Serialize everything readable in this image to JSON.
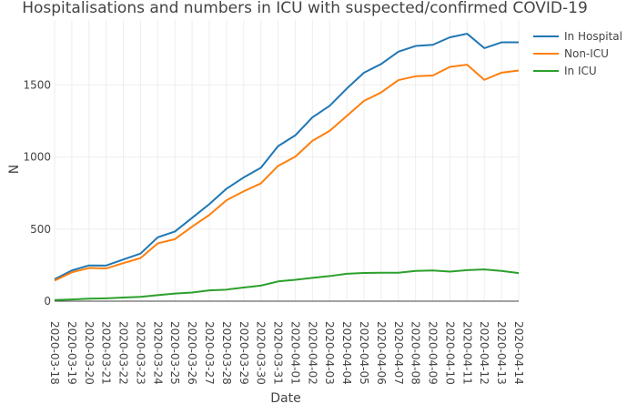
{
  "chart_data": {
    "type": "line",
    "title": "Hospitalisations and numbers in ICU with suspected/confirmed COVID-19",
    "xlabel": "Date",
    "ylabel": "N",
    "ylim": [
      0,
      1950
    ],
    "yticks": [
      0,
      500,
      1000,
      1500
    ],
    "yticks_labels": [
      "0",
      "500",
      "1000",
      "1500"
    ],
    "grid": true,
    "legend_position": "top-right",
    "x": [
      "2020-03-18",
      "2020-03-19",
      "2020-03-20",
      "2020-03-21",
      "2020-03-22",
      "2020-03-23",
      "2020-03-24",
      "2020-03-25",
      "2020-03-26",
      "2020-03-27",
      "2020-03-28",
      "2020-03-29",
      "2020-03-30",
      "2020-03-31",
      "2020-04-01",
      "2020-04-02",
      "2020-04-03",
      "2020-04-04",
      "2020-04-05",
      "2020-04-06",
      "2020-04-07",
      "2020-04-08",
      "2020-04-09",
      "2020-04-10",
      "2020-04-11",
      "2020-04-12",
      "2020-04-13",
      "2020-04-14"
    ],
    "xtick_labels": [
      "2020-03-18",
      "2020-03-19",
      "2020-03-20",
      "2020-03-21",
      "2020-03-22",
      "2020-03-23",
      "2020-03-24",
      "2020-03-25",
      "2020-03-26",
      "2020-03-27",
      "2020-03-28",
      "2020-03-29",
      "2020-03-30",
      "2020-03-31",
      "2020-04-01",
      "2020-04-02",
      "2020-04-03",
      "2020-04-04",
      "2020-04-05",
      "2020-04-06",
      "2020-04-07",
      "2020-04-08",
      "2020-04-09",
      "2020-04-10",
      "2020-04-11",
      "2020-04-12",
      "2020-04-13",
      "2020-04-14"
    ],
    "series": [
      {
        "name": "In Hospital",
        "color": "#1f77b4",
        "values": [
          152,
          213,
          248,
          247,
          289,
          330,
          443,
          483,
          578,
          673,
          780,
          858,
          925,
          1075,
          1150,
          1275,
          1355,
          1475,
          1585,
          1645,
          1730,
          1770,
          1778,
          1830,
          1855,
          1755,
          1795,
          1795
        ]
      },
      {
        "name": "Non-ICU",
        "color": "#ff7f0e",
        "values": [
          143,
          200,
          230,
          227,
          264,
          299,
          401,
          430,
          517,
          598,
          700,
          762,
          817,
          938,
          1002,
          1112,
          1181,
          1285,
          1389,
          1448,
          1533,
          1560,
          1565,
          1625,
          1640,
          1535,
          1585,
          1600
        ]
      },
      {
        "name": "In ICU",
        "color": "#2ca02c",
        "values": [
          8,
          12,
          17,
          20,
          25,
          30,
          42,
          53,
          60,
          75,
          80,
          95,
          108,
          137,
          148,
          162,
          174,
          190,
          196,
          197,
          197,
          210,
          213,
          205,
          215,
          220,
          210,
          195
        ]
      }
    ]
  }
}
